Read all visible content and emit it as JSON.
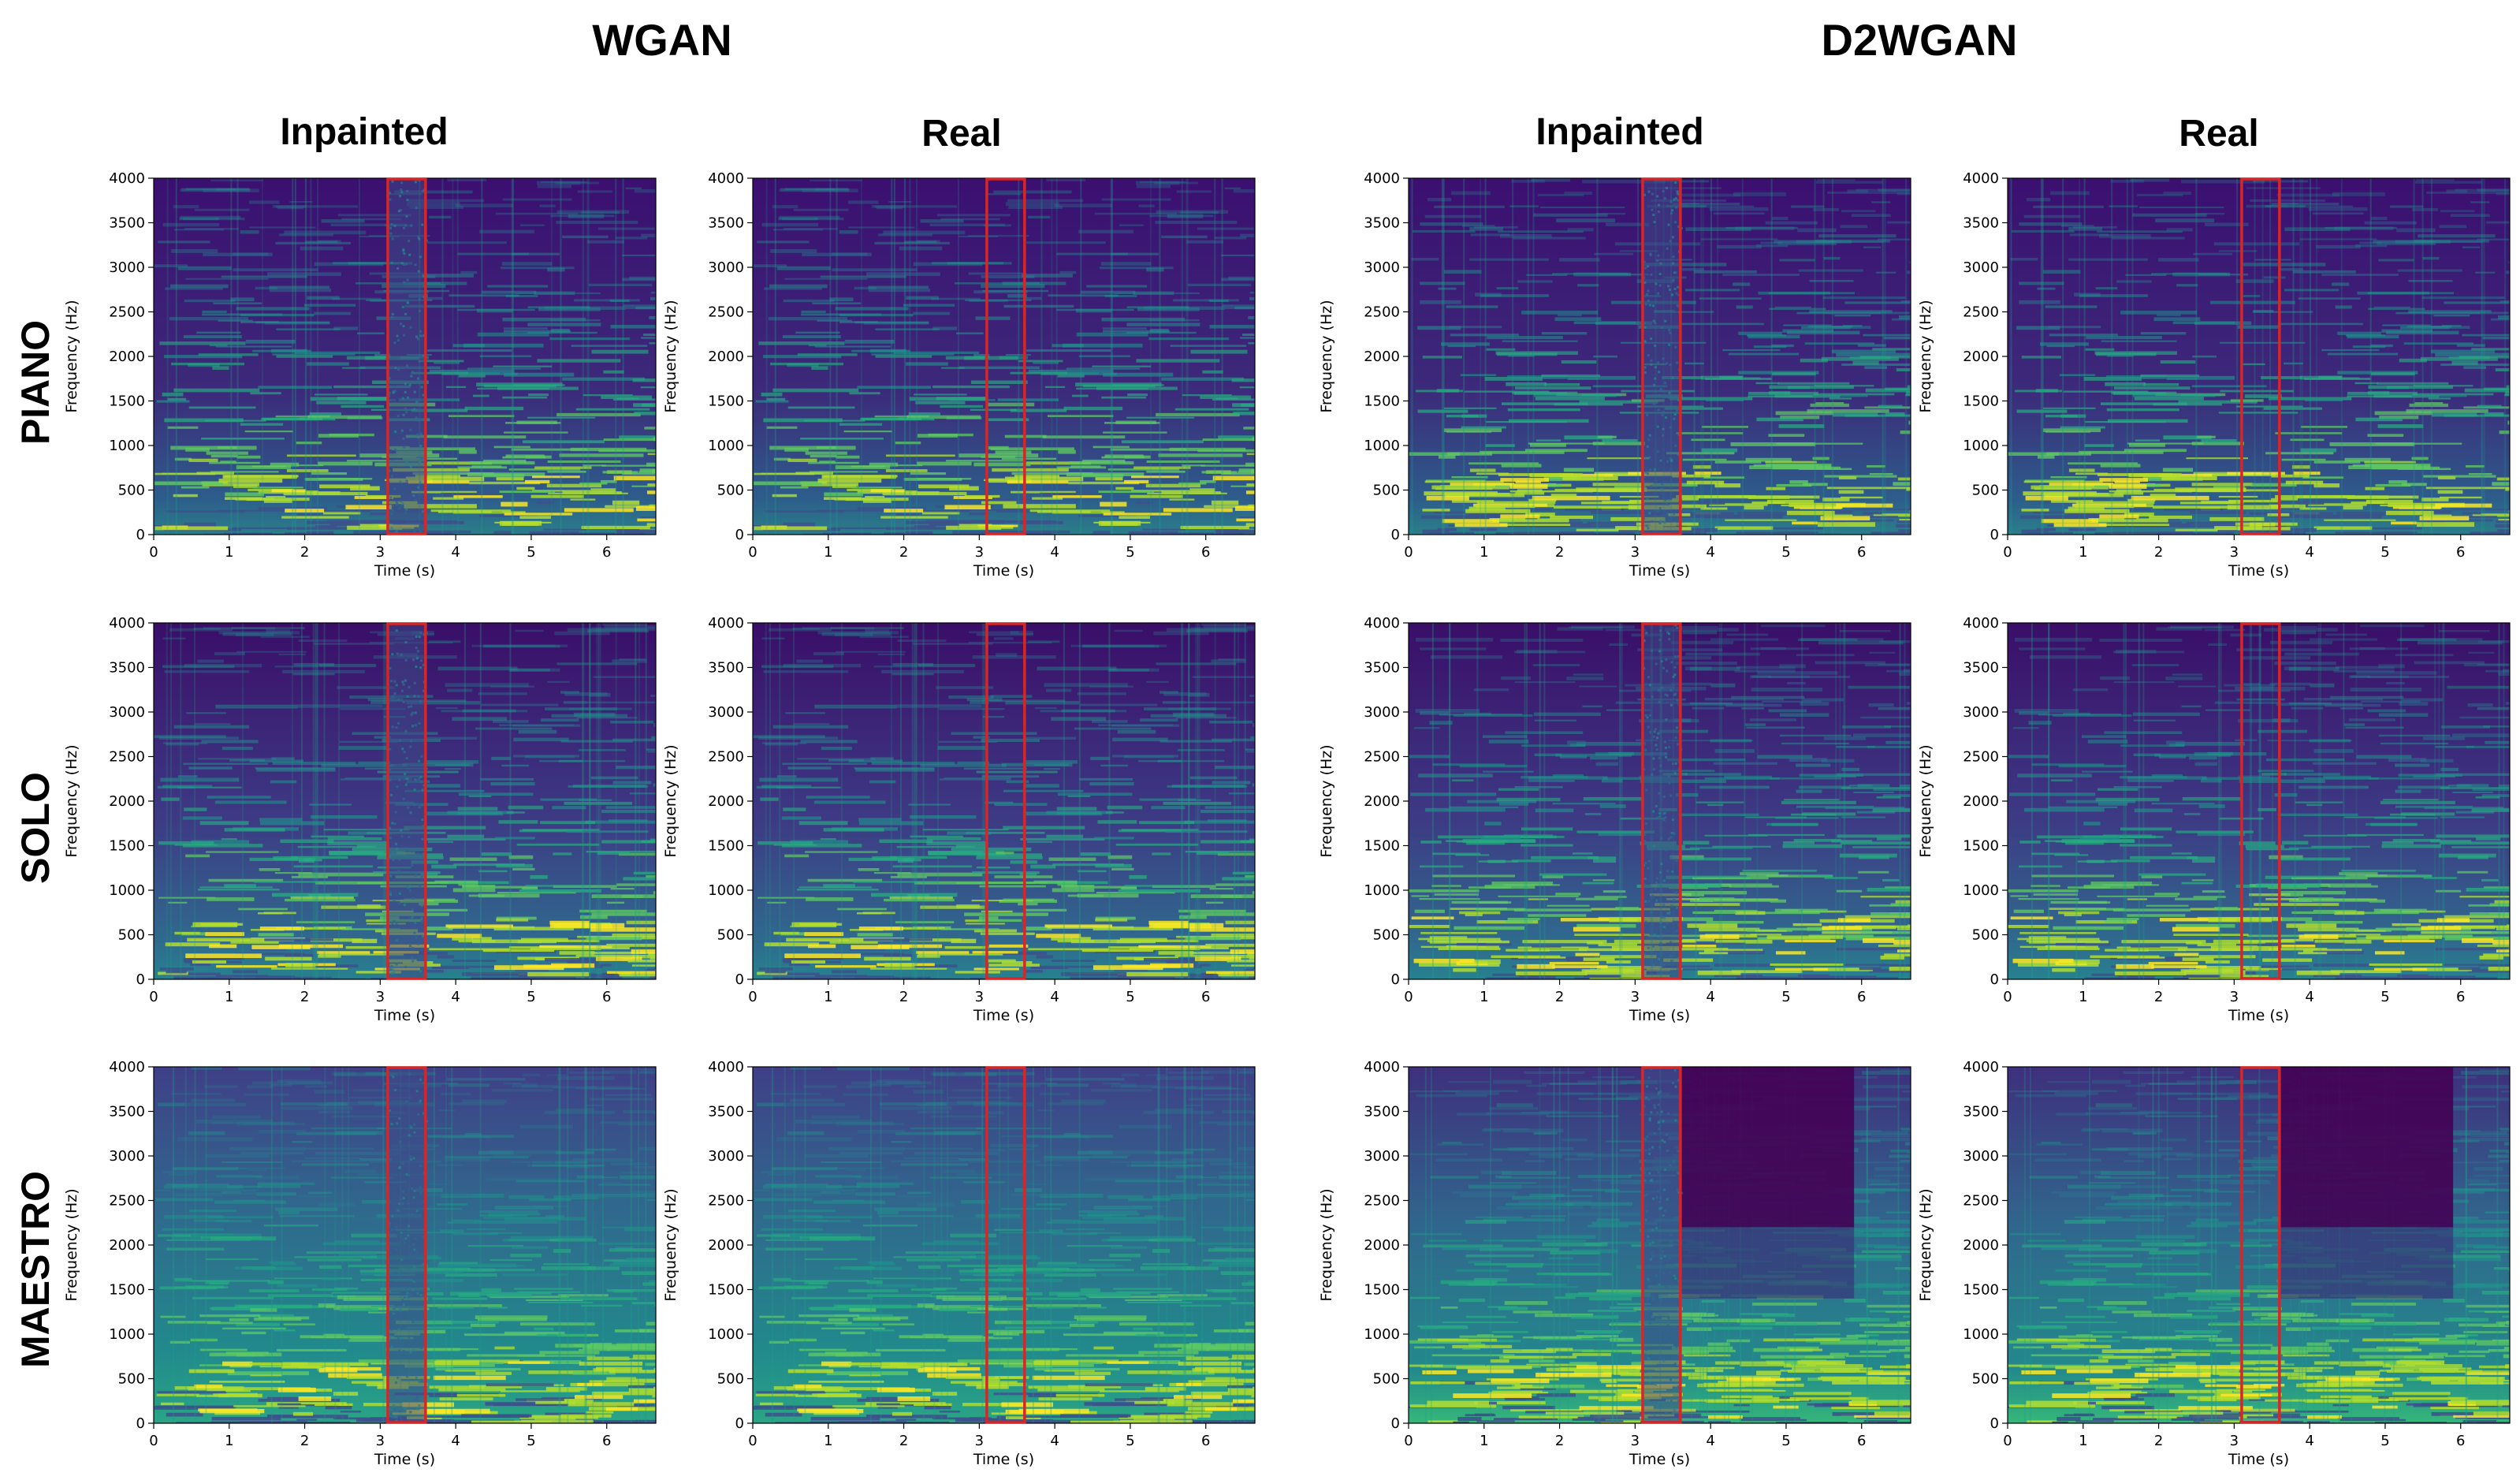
{
  "figure": {
    "groups": [
      {
        "label": "WGAN"
      },
      {
        "label": "D2WGAN"
      }
    ],
    "columns": [
      {
        "label": "Inpainted"
      },
      {
        "label": "Real"
      },
      {
        "label": "Inpainted"
      },
      {
        "label": "Real"
      }
    ],
    "rows": [
      {
        "label": "PIANO"
      },
      {
        "label": "SOLO"
      },
      {
        "label": "MAESTRO"
      }
    ]
  },
  "colors": {
    "highlight_box": "#d62728",
    "colormap_low": "#440154",
    "colormap_high": "#fde725"
  },
  "chart_data": {
    "type": "heatmap",
    "xlabel": "Time (s)",
    "ylabel": "Frequency (Hz)",
    "xlim": [
      0,
      6.65
    ],
    "ylim": [
      0,
      4000
    ],
    "x_ticks": [
      0,
      1,
      2,
      3,
      4,
      5,
      6
    ],
    "y_ticks": [
      0,
      500,
      1000,
      1500,
      2000,
      2500,
      3000,
      3500,
      4000
    ],
    "highlighted_region_s": [
      3.1,
      3.6
    ],
    "colormap": "viridis",
    "panels_per_row": 4,
    "rows": 3
  }
}
